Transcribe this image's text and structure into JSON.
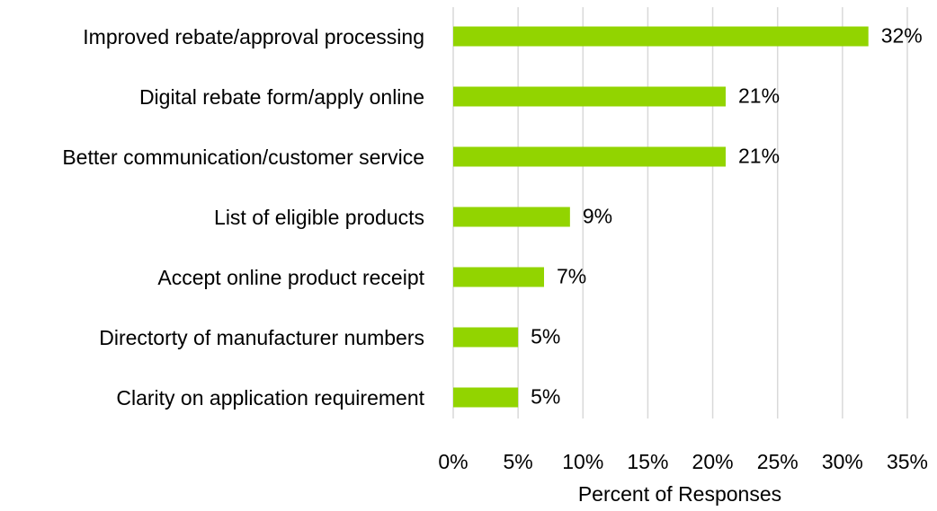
{
  "chart_data": {
    "type": "bar",
    "orientation": "horizontal",
    "categories": [
      "Improved rebate/approval processing",
      "Digital rebate form/apply online",
      "Better communication/customer service",
      "List of eligible products",
      "Accept online product receipt",
      "Directorty of manufacturer numbers",
      "Clarity on application requirement"
    ],
    "values": [
      32,
      21,
      21,
      9,
      7,
      5,
      5
    ],
    "value_labels": [
      "32%",
      "21%",
      "21%",
      "9%",
      "7%",
      "5%",
      "5%"
    ],
    "color": "#92d400",
    "xlim": [
      0,
      35
    ],
    "xticks": [
      {
        "value": 0,
        "label": "0%"
      },
      {
        "value": 5,
        "label": "5%"
      },
      {
        "value": 10,
        "label": "10%"
      },
      {
        "value": 15,
        "label": "15%"
      },
      {
        "value": 20,
        "label": "20%"
      },
      {
        "value": 25,
        "label": "25%"
      },
      {
        "value": 30,
        "label": "30%"
      },
      {
        "value": 35,
        "label": "35%"
      }
    ],
    "xlabel": "Percent of Responses",
    "grid": true
  }
}
